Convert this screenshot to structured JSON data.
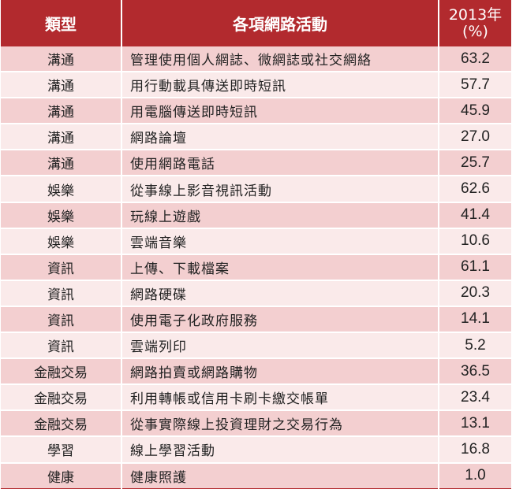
{
  "header": {
    "type_label": "類型",
    "activity_label": "各項網路活動",
    "year_label": "2013年",
    "unit_label": "(%)"
  },
  "rows": [
    {
      "type": "溝通",
      "activity": "管理使用個人網誌、微網誌或社交網絡",
      "percent": "63.2"
    },
    {
      "type": "溝通",
      "activity": "用行動載具傳送即時短訊",
      "percent": "57.7"
    },
    {
      "type": "溝通",
      "activity": "用電腦傳送即時短訊",
      "percent": "45.9"
    },
    {
      "type": "溝通",
      "activity": "網路論壇",
      "percent": "27.0"
    },
    {
      "type": "溝通",
      "activity": "使用網路電話",
      "percent": "25.7"
    },
    {
      "type": "娛樂",
      "activity": "從事線上影音視訊活動",
      "percent": "62.6"
    },
    {
      "type": "娛樂",
      "activity": "玩線上遊戲",
      "percent": "41.4"
    },
    {
      "type": "娛樂",
      "activity": "雲端音樂",
      "percent": "10.6"
    },
    {
      "type": "資訊",
      "activity": "上傳、下載檔案",
      "percent": "61.1"
    },
    {
      "type": "資訊",
      "activity": "網路硬碟",
      "percent": "20.3"
    },
    {
      "type": "資訊",
      "activity": "使用電子化政府服務",
      "percent": "14.1"
    },
    {
      "type": "資訊",
      "activity": "雲端列印",
      "percent": "5.2"
    },
    {
      "type": "金融交易",
      "activity": "網路拍賣或網路購物",
      "percent": "36.5"
    },
    {
      "type": "金融交易",
      "activity": "利用轉帳或信用卡刷卡繳交帳單",
      "percent": "23.4"
    },
    {
      "type": "金融交易",
      "activity": "從事實際線上投資理財之交易行為",
      "percent": "13.1"
    },
    {
      "type": "學習",
      "activity": "線上學習活動",
      "percent": "16.8"
    },
    {
      "type": "健康",
      "activity": "健康照護",
      "percent": "1.0"
    }
  ],
  "colors": {
    "header_bg": "#b22a2e",
    "row_odd_bg": "#f3cfd0",
    "row_even_bg": "#faeaea"
  }
}
